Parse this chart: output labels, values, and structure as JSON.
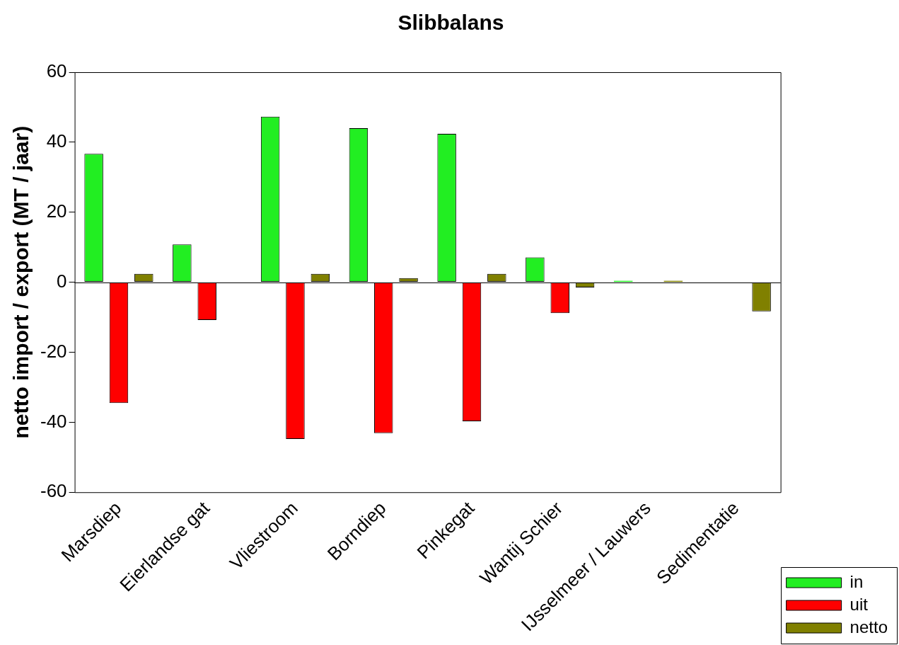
{
  "chart_data": {
    "type": "bar",
    "title": "Slibbalans",
    "ylabel": "netto import / export (MT / jaar)",
    "categories": [
      "Marsdiep",
      "Eierlandse gat",
      "Vliestroom",
      "Borndiep",
      "Pinkegat",
      "Wantij Schier",
      "IJsselmeer / Lauwers",
      "Sedimentatie"
    ],
    "series": [
      {
        "name": "in",
        "color": "#22ee22",
        "values": [
          36.7,
          10.8,
          47.3,
          44,
          42.4,
          7.1,
          0.4,
          null
        ]
      },
      {
        "name": "uit",
        "color": "#ff0000",
        "values": [
          -34.5,
          -10.8,
          -44.8,
          -43.1,
          -39.7,
          -8.8,
          null,
          null
        ]
      },
      {
        "name": "netto",
        "color": "#808000",
        "values": [
          2.4,
          null,
          2.4,
          1.2,
          2.4,
          -1.5,
          0.4,
          -8.3
        ]
      }
    ],
    "ref_lines": [
      {
        "axis": "y",
        "value": 0,
        "color": "#000000"
      }
    ],
    "ylim": [
      -60,
      60
    ],
    "yticks": [
      -60,
      -40,
      -20,
      0,
      20,
      40,
      60
    ],
    "grid": false,
    "legend": "right"
  }
}
